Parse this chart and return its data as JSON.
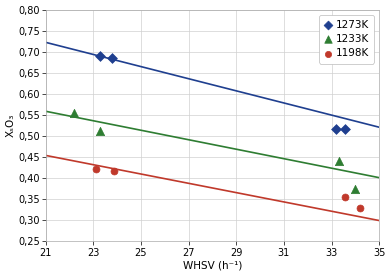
{
  "xlabel": "WHSV (h⁻¹)",
  "ylabel": "XₛO₃",
  "xlim": [
    21,
    35
  ],
  "ylim": [
    0.25,
    0.8
  ],
  "xticks": [
    21,
    23,
    25,
    27,
    29,
    31,
    33,
    35
  ],
  "yticks": [
    0.25,
    0.3,
    0.35,
    0.4,
    0.45,
    0.5,
    0.55,
    0.6,
    0.65,
    0.7,
    0.75,
    0.8
  ],
  "series": [
    {
      "label": "1273K",
      "color": "#1f3f8f",
      "marker": "D",
      "markersize": 5,
      "points_x": [
        23.3,
        23.8,
        33.2,
        33.55
      ],
      "points_y": [
        0.69,
        0.685,
        0.515,
        0.515
      ],
      "trendline_x": [
        21,
        35
      ],
      "trendline_y": [
        0.722,
        0.52
      ]
    },
    {
      "label": "1233K",
      "color": "#2e7d32",
      "marker": "^",
      "markersize": 6,
      "points_x": [
        22.2,
        23.3,
        33.3,
        34.0
      ],
      "points_y": [
        0.555,
        0.51,
        0.44,
        0.373
      ],
      "trendline_x": [
        21,
        35
      ],
      "trendline_y": [
        0.558,
        0.4
      ]
    },
    {
      "label": "1198K",
      "color": "#c0392b",
      "marker": "o",
      "markersize": 5,
      "points_x": [
        23.1,
        23.85,
        33.55,
        34.2
      ],
      "points_y": [
        0.42,
        0.415,
        0.355,
        0.328
      ],
      "trendline_x": [
        21,
        35
      ],
      "trendline_y": [
        0.453,
        0.298
      ]
    }
  ],
  "background_color": "#ffffff",
  "grid_color": "#d0d0d0",
  "legend_fontsize": 7.5,
  "axis_fontsize": 7.5,
  "tick_fontsize": 7
}
